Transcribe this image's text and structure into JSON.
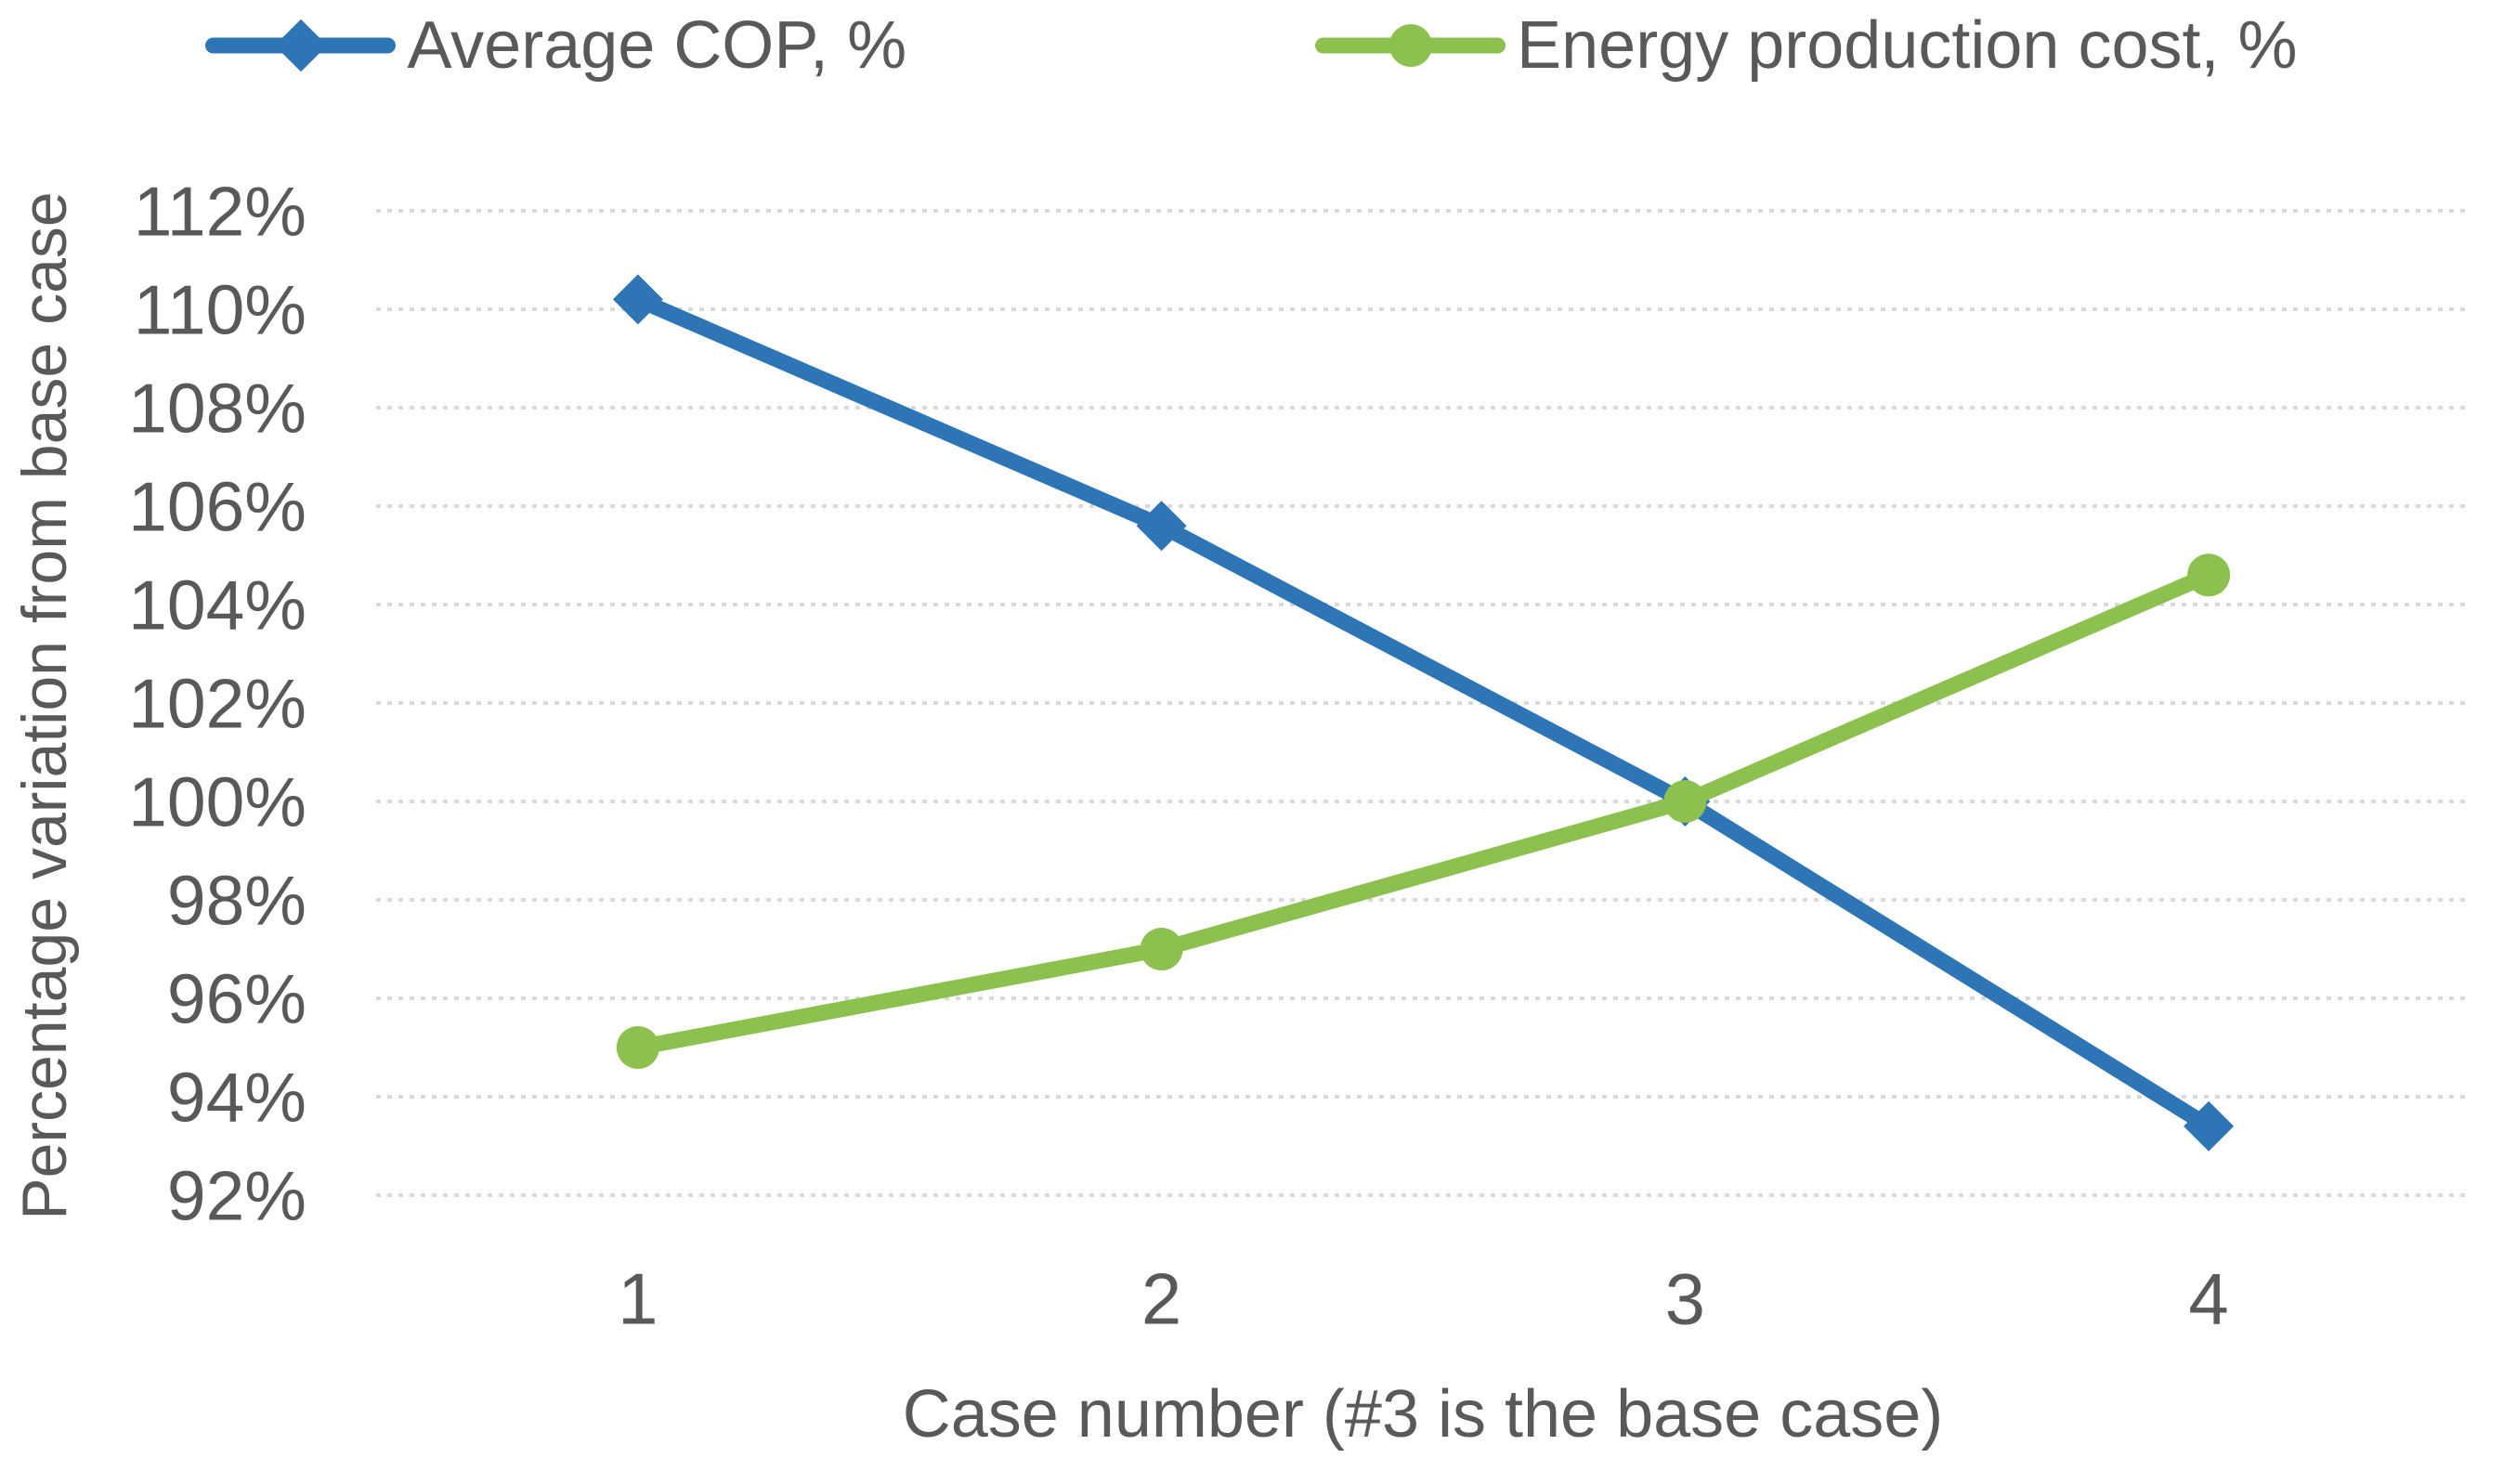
{
  "chart_data": {
    "type": "line",
    "title": "",
    "categories": [
      "1",
      "2",
      "3",
      "4"
    ],
    "series": [
      {
        "name": "Average COP, %",
        "color": "#2E75B6",
        "marker": "diamond",
        "values": [
          110.2,
          105.6,
          100.0,
          93.4
        ]
      },
      {
        "name": "Energy production cost, %",
        "color": "#8CC04F",
        "marker": "circle",
        "values": [
          95.0,
          97.0,
          100.0,
          104.6
        ]
      }
    ],
    "xlabel": "Case number (#3 is the base case)",
    "ylabel": "Percentage variation from base case",
    "ylim": [
      92,
      112
    ],
    "ytick_step": 2,
    "yticks": [
      "112%",
      "110%",
      "108%",
      "106%",
      "104%",
      "102%",
      "100%",
      "98%",
      "96%",
      "94%",
      "92%"
    ],
    "xticks": [
      "1",
      "2",
      "3",
      "4"
    ],
    "grid": "horizontal-dashed",
    "legend_position": "top",
    "colors": {
      "text": "#595959",
      "gridline": "#D9D9D9",
      "background": "#FFFFFF"
    }
  }
}
